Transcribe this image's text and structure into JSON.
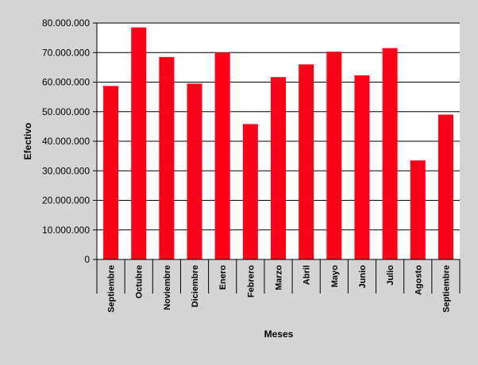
{
  "chart_data": {
    "type": "bar",
    "categories": [
      "Septiembre",
      "Octubre",
      "Noviembre",
      "Diciembre",
      "Enero",
      "Febrero",
      "Marzo",
      "Abril",
      "Mayo",
      "Junio",
      "Julio",
      "Agosto",
      "Septiembre"
    ],
    "values": [
      58700000,
      78500000,
      68500000,
      59500000,
      70000000,
      45800000,
      61700000,
      66000000,
      70300000,
      62300000,
      71500000,
      33500000,
      49000000
    ],
    "ylim": [
      0,
      80000000
    ],
    "yticks": [
      "0",
      "10.000.000",
      "20.000.000",
      "30.000.000",
      "40.000.000",
      "50.000.000",
      "60.000.000",
      "70.000.000",
      "80.000.000"
    ],
    "ytick_values": [
      0,
      10000000,
      20000000,
      30000000,
      40000000,
      50000000,
      60000000,
      70000000,
      80000000
    ],
    "xlabel": "Meses",
    "ylabel": "Efectivo",
    "grid": true,
    "colors": {
      "bar": "#ff0018",
      "plot_bg": "#ffffff",
      "page_bg": "#d4d4d4",
      "grid": "#000000"
    }
  }
}
